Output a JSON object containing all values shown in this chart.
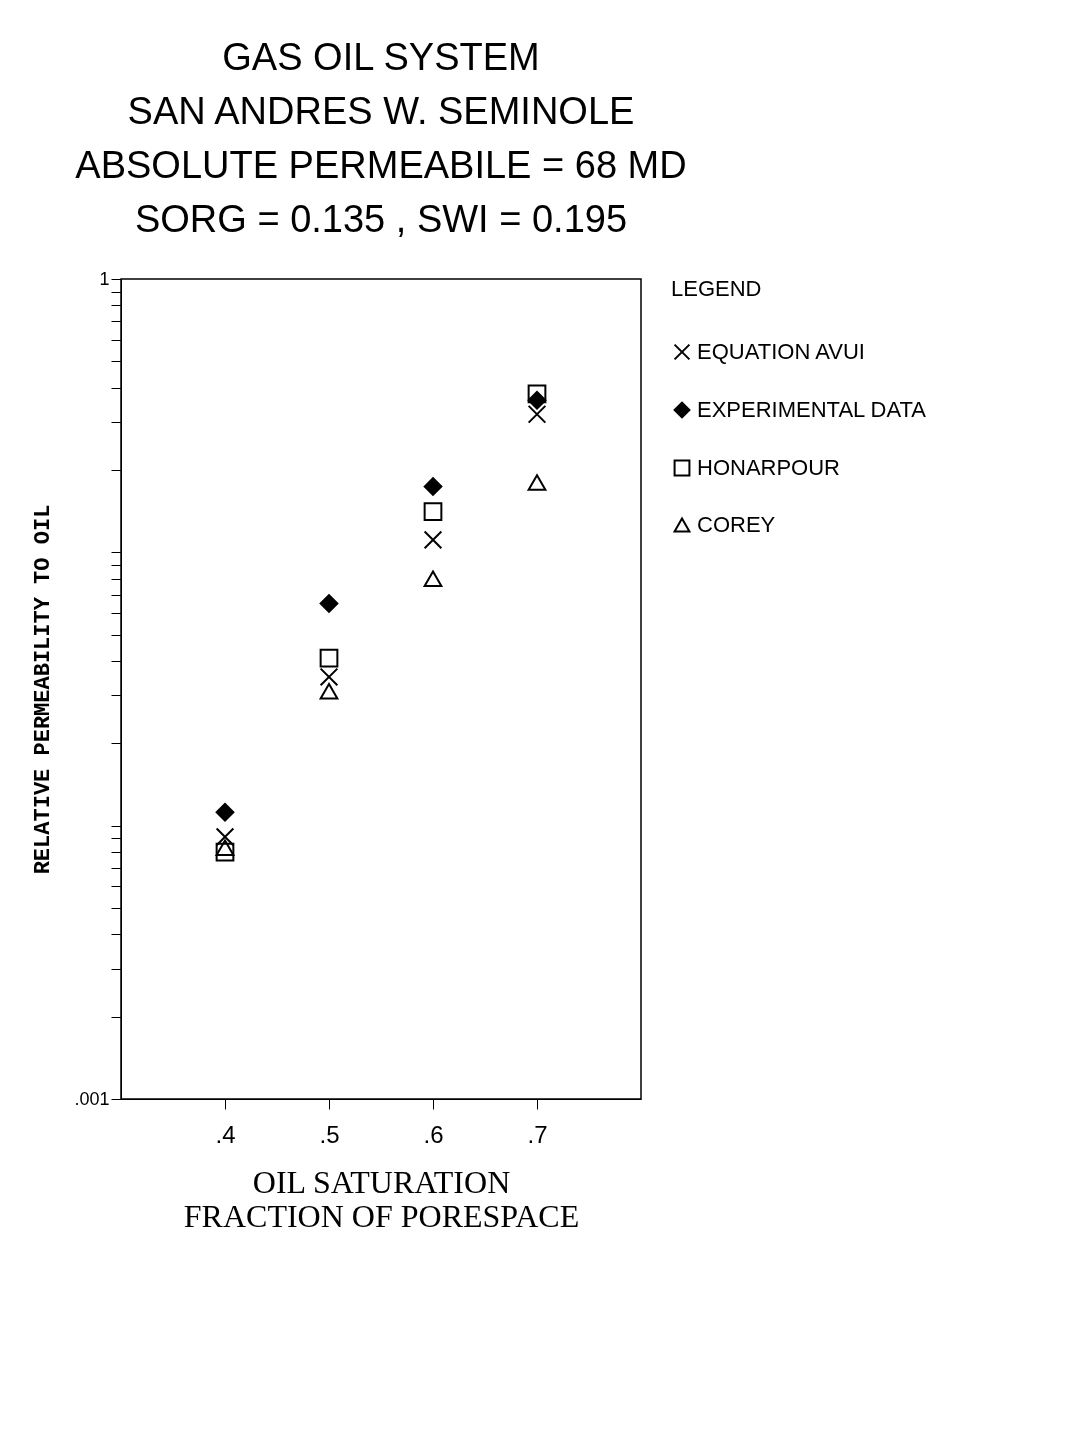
{
  "chart_data": {
    "type": "scatter",
    "title": "GAS OIL SYSTEM\nSAN ANDRES W. SEMINOLE\nABSOLUTE PERMEABILE = 68 MD\nSORG  =  0.135 , SWI          = 0.195",
    "xlabel": "OIL SATURATION\nFRACTION OF PORESPACE",
    "ylabel": "RELATIVE PERMEABILITY TO OIL",
    "legend_title": "LEGEND",
    "x": [
      0.4,
      0.5,
      0.6,
      0.7
    ],
    "series": [
      {
        "name": "EQUATION AVUI",
        "color": "#000000",
        "marker": "cross",
        "values": [
          0.0091,
          0.035,
          0.111,
          0.32
        ]
      },
      {
        "name": "EXPERIMENTAL DATA",
        "color": "#000000",
        "marker": "diamond",
        "values": [
          0.0112,
          0.065,
          0.174,
          0.36
        ]
      },
      {
        "name": "HONARPOUR",
        "color": "#000000",
        "marker": "square",
        "values": [
          0.008,
          0.041,
          0.141,
          0.38
        ]
      },
      {
        "name": "COREY",
        "color": "#000000",
        "marker": "triangle",
        "values": [
          0.0083,
          0.031,
          0.08,
          0.18
        ]
      }
    ],
    "log": "y",
    "xlim": [
      0.3,
      0.8
    ],
    "xticks": [
      {
        "value": 0.4,
        "label": ".4"
      },
      {
        "value": 0.5,
        "label": ".5"
      },
      {
        "value": 0.6,
        "label": ".6"
      },
      {
        "value": 0.7,
        "label": ".7"
      }
    ],
    "ylim": [
      0.001,
      1
    ],
    "yticks": [
      {
        "value": 0.001,
        "label": ".001"
      },
      {
        "value": 0.002,
        "label": null
      },
      {
        "value": 0.003,
        "label": null
      },
      {
        "value": 0.004,
        "label": null
      },
      {
        "value": 0.005,
        "label": null
      },
      {
        "value": 0.006,
        "label": null
      },
      {
        "value": 0.007,
        "label": null
      },
      {
        "value": 0.008,
        "label": null
      },
      {
        "value": 0.009,
        "label": null
      },
      {
        "value": 0.01,
        "label": null
      },
      {
        "value": 0.02,
        "label": null
      },
      {
        "value": 0.03,
        "label": null
      },
      {
        "value": 0.04,
        "label": null
      },
      {
        "value": 0.05,
        "label": null
      },
      {
        "value": 0.06,
        "label": null
      },
      {
        "value": 0.07,
        "label": null
      },
      {
        "value": 0.08,
        "label": null
      },
      {
        "value": 0.09,
        "label": null
      },
      {
        "value": 0.1,
        "label": null
      },
      {
        "value": 0.2,
        "label": null
      },
      {
        "value": 0.3,
        "label": null
      },
      {
        "value": 0.4,
        "label": null
      },
      {
        "value": 0.5,
        "label": null
      },
      {
        "value": 0.6,
        "label": null
      },
      {
        "value": 0.7,
        "label": null
      },
      {
        "value": 0.8,
        "label": null
      },
      {
        "value": 0.9,
        "label": null
      },
      1
    ],
    "grid": false,
    "legend": "top right"
  }
}
